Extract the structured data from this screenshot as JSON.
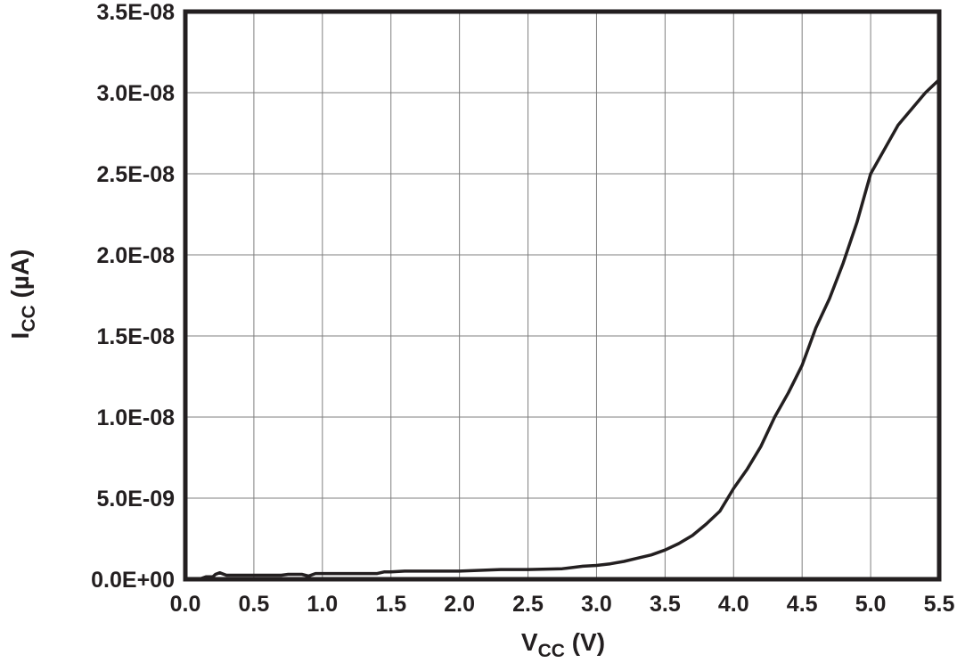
{
  "chart_data": {
    "type": "line",
    "title": "",
    "xlabel": {
      "main": "V",
      "sub": "CC",
      "unit": " (V)"
    },
    "ylabel": {
      "main": "I",
      "sub": "CC",
      "unit": " (µA)"
    },
    "xlim": [
      0,
      5.5
    ],
    "ylim": [
      0,
      3.5e-08
    ],
    "grid": true,
    "legend": "none",
    "xticks": [
      "0.0",
      "0.5",
      "1.0",
      "1.5",
      "2.0",
      "2.5",
      "3.0",
      "3.5",
      "4.0",
      "4.5",
      "5.0",
      "5.5"
    ],
    "yticks": [
      "0.0E+00",
      "5.0E-09",
      "1.0E-08",
      "1.5E-08",
      "2.0E-08",
      "2.5E-08",
      "3.0E-08",
      "3.5E-08"
    ],
    "line_color": "#231f20",
    "series": [
      {
        "x": [
          0.0,
          0.1,
          0.15,
          0.2,
          0.22,
          0.25,
          0.3,
          0.5,
          0.7,
          0.75,
          0.85,
          0.9,
          0.95,
          1.0,
          1.2,
          1.4,
          1.45,
          1.5,
          1.6,
          1.7,
          2.0,
          2.3,
          2.5,
          2.75,
          2.9,
          3.0,
          3.1,
          3.2,
          3.3,
          3.4,
          3.5,
          3.6,
          3.7,
          3.8,
          3.9,
          4.0,
          4.1,
          4.2,
          4.3,
          4.4,
          4.5,
          4.6,
          4.7,
          4.8,
          4.9,
          5.0,
          5.1,
          5.2,
          5.3,
          5.4,
          5.5
        ],
        "values": [
          0,
          0,
          1.5e-10,
          1.5e-10,
          3e-10,
          4e-10,
          2.5e-10,
          2.5e-10,
          2.5e-10,
          3e-10,
          3e-10,
          2e-10,
          3.5e-10,
          3.5e-10,
          3.5e-10,
          3.5e-10,
          4.5e-10,
          4.5e-10,
          5e-10,
          5e-10,
          5e-10,
          6e-10,
          6e-10,
          6.5e-10,
          8e-10,
          8.5e-10,
          9.5e-10,
          1.1e-09,
          1.3e-09,
          1.5e-09,
          1.8e-09,
          2.2e-09,
          2.7e-09,
          3.4e-09,
          4.2e-09,
          5.6e-09,
          6.8e-09,
          8.2e-09,
          1e-08,
          1.15e-08,
          1.32e-08,
          1.55e-08,
          1.73e-08,
          1.95e-08,
          2.2e-08,
          2.5e-08,
          2.65e-08,
          2.8e-08,
          2.9e-08,
          3e-08,
          3.08e-08
        ]
      }
    ]
  }
}
